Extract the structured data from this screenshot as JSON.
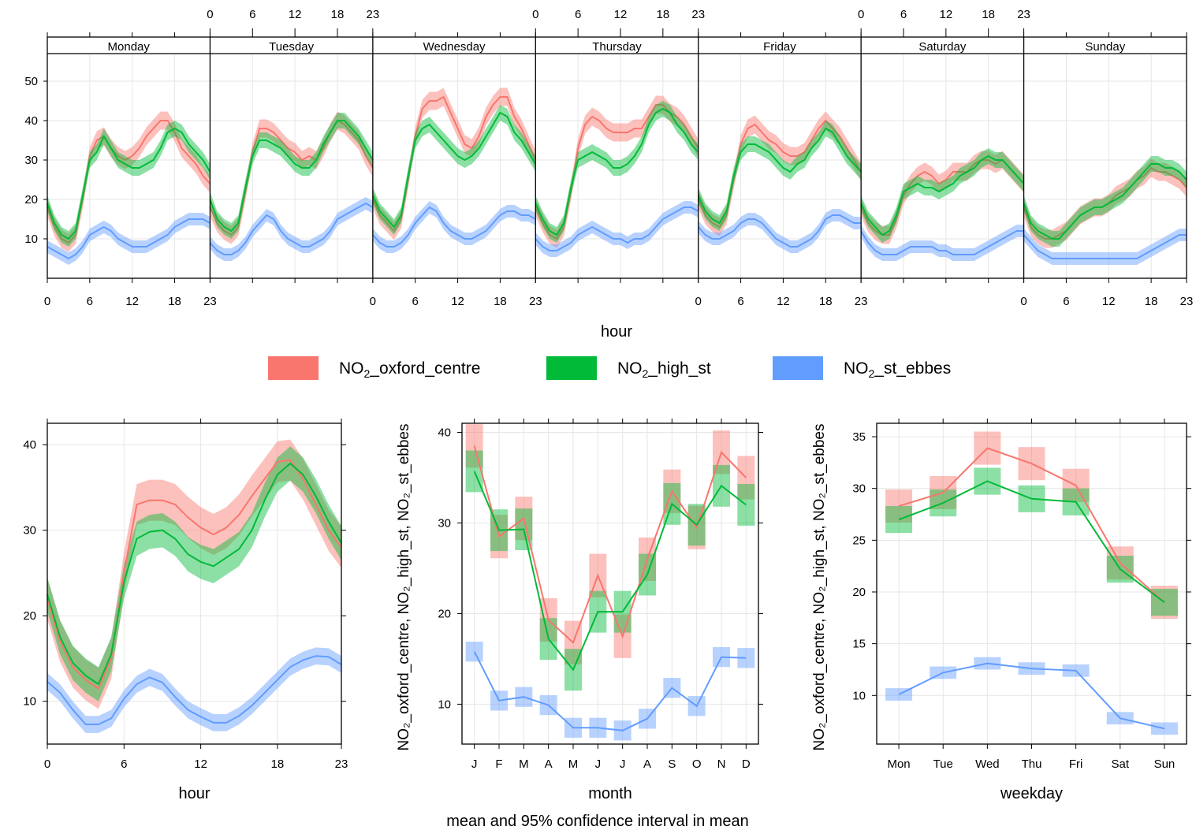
{
  "caption": "mean and 95% confidence interval in mean",
  "colors": {
    "NO2_oxford_centre": "#F8766D",
    "NO2_high_st": "#00BA38",
    "NO2_st_ebbes": "#619CFF"
  },
  "legend": {
    "placement": "middle",
    "items": [
      {
        "key": "NO2_oxford_centre",
        "prefix": "NO",
        "sub": "2",
        "suffix": "_oxford_centre"
      },
      {
        "key": "NO2_high_st",
        "prefix": "NO",
        "sub": "2",
        "suffix": "_high_st"
      },
      {
        "key": "NO2_st_ebbes",
        "prefix": "NO",
        "sub": "2",
        "suffix": "_st_ebbes"
      }
    ]
  },
  "shared_ylabel": "NO₂_oxford_centre, NO₂_high_st, NO₂_st_ebbes",
  "chart_data": [
    {
      "type": "line",
      "panel": "day_hour",
      "xlabel": "hour",
      "ylim": [
        0,
        57
      ],
      "yticks": [
        10,
        20,
        30,
        40,
        50
      ],
      "xticks": [
        0,
        6,
        12,
        18,
        23
      ],
      "grid": true,
      "days": [
        "Monday",
        "Tuesday",
        "Wednesday",
        "Thursday",
        "Friday",
        "Saturday",
        "Sunday"
      ],
      "series": [
        {
          "name": "NO2_oxford_centre",
          "values": [
            [
              18,
              13,
              10,
              9,
              11,
              20,
              31,
              35,
              36,
              33,
              31,
              30,
              31,
              33,
              36,
              38,
              40,
              40,
              37,
              33,
              31,
              29,
              26,
              24
            ],
            [
              18,
              14,
              12,
              11,
              13,
              22,
              32,
              38,
              38,
              37,
              35,
              33,
              32,
              30,
              31,
              30,
              33,
              37,
              40,
              39,
              37,
              35,
              31,
              28
            ],
            [
              20,
              16,
              14,
              12,
              15,
              25,
              36,
              43,
              45,
              45,
              46,
              42,
              38,
              34,
              33,
              36,
              41,
              44,
              46,
              46,
              41,
              38,
              34,
              30
            ],
            [
              18,
              14,
              11,
              10,
              13,
              22,
              33,
              39,
              41,
              40,
              38,
              37,
              37,
              37,
              38,
              38,
              41,
              44,
              44,
              42,
              41,
              39,
              36,
              33
            ],
            [
              20,
              16,
              14,
              13,
              16,
              25,
              34,
              38,
              39,
              37,
              35,
              34,
              32,
              31,
              31,
              32,
              35,
              38,
              40,
              38,
              36,
              33,
              30,
              27
            ],
            [
              18,
              14,
              12,
              11,
              11,
              15,
              21,
              24,
              26,
              27,
              26,
              24,
              25,
              27,
              27,
              27,
              29,
              30,
              30,
              29,
              30,
              28,
              26,
              24
            ],
            [
              18,
              13,
              11,
              10,
              10,
              11,
              12,
              14,
              16,
              17,
              18,
              18,
              19,
              21,
              22,
              23,
              25,
              26,
              28,
              27,
              27,
              26,
              25,
              23
            ]
          ]
        },
        {
          "name": "NO2_high_st",
          "values": [
            [
              19,
              14,
              11,
              10,
              12,
              21,
              30,
              32,
              36,
              33,
              30,
              29,
              28,
              28,
              29,
              30,
              33,
              37,
              38,
              37,
              34,
              32,
              30,
              27
            ],
            [
              20,
              15,
              13,
              12,
              14,
              23,
              31,
              35,
              35,
              34,
              33,
              31,
              29,
              28,
              28,
              30,
              34,
              37,
              40,
              40,
              38,
              36,
              33,
              30
            ],
            [
              21,
              17,
              15,
              13,
              16,
              26,
              35,
              38,
              39,
              37,
              35,
              33,
              31,
              30,
              31,
              33,
              36,
              39,
              42,
              41,
              37,
              35,
              32,
              29
            ],
            [
              19,
              15,
              12,
              11,
              14,
              23,
              30,
              31,
              32,
              31,
              30,
              28,
              28,
              29,
              31,
              34,
              39,
              42,
              43,
              42,
              39,
              37,
              34,
              32
            ],
            [
              21,
              17,
              15,
              14,
              17,
              26,
              32,
              34,
              34,
              33,
              32,
              30,
              28,
              27,
              29,
              30,
              33,
              35,
              38,
              37,
              34,
              31,
              29,
              27
            ],
            [
              19,
              15,
              13,
              11,
              12,
              16,
              22,
              23,
              24,
              23,
              23,
              22,
              23,
              24,
              26,
              27,
              28,
              30,
              31,
              30,
              30,
              28,
              26,
              24
            ],
            [
              19,
              14,
              12,
              11,
              10,
              10,
              12,
              14,
              16,
              17,
              18,
              18,
              19,
              20,
              21,
              23,
              25,
              27,
              29,
              29,
              28,
              28,
              27,
              25
            ]
          ]
        },
        {
          "name": "NO2_st_ebbes",
          "values": [
            [
              8,
              7,
              6,
              5,
              6,
              8,
              11,
              12,
              13,
              12,
              10,
              9,
              8,
              8,
              8,
              9,
              10,
              11,
              13,
              14,
              15,
              15,
              15,
              14
            ],
            [
              9,
              7,
              6,
              6,
              7,
              9,
              12,
              14,
              16,
              15,
              12,
              10,
              9,
              8,
              8,
              9,
              10,
              12,
              15,
              16,
              17,
              18,
              19,
              18
            ],
            [
              11,
              9,
              8,
              8,
              9,
              11,
              14,
              16,
              18,
              17,
              14,
              12,
              11,
              10,
              10,
              11,
              12,
              14,
              16,
              17,
              17,
              16,
              16,
              15
            ],
            [
              10,
              8,
              7,
              7,
              8,
              9,
              11,
              12,
              13,
              12,
              11,
              10,
              10,
              9,
              10,
              10,
              11,
              13,
              15,
              16,
              17,
              18,
              18,
              17
            ],
            [
              13,
              11,
              10,
              10,
              11,
              12,
              14,
              15,
              15,
              14,
              12,
              10,
              9,
              8,
              8,
              9,
              10,
              12,
              15,
              16,
              16,
              15,
              14,
              14
            ],
            [
              12,
              9,
              7,
              6,
              6,
              6,
              7,
              8,
              8,
              8,
              8,
              7,
              7,
              6,
              6,
              6,
              6,
              7,
              8,
              9,
              10,
              11,
              12,
              12
            ],
            [
              11,
              9,
              7,
              6,
              5,
              5,
              5,
              5,
              5,
              5,
              5,
              5,
              5,
              5,
              5,
              5,
              5,
              6,
              7,
              8,
              9,
              10,
              11,
              11
            ]
          ]
        }
      ]
    },
    {
      "type": "line",
      "panel": "hour",
      "xlabel": "hour",
      "xlim": [
        0,
        23
      ],
      "ylim": [
        5,
        42.5
      ],
      "xticks": [
        0,
        6,
        12,
        18,
        23
      ],
      "yticks": [
        10,
        20,
        30,
        40
      ],
      "grid": true,
      "series": [
        {
          "name": "NO2_oxford_centre",
          "values": [
            22,
            17,
            14,
            12.5,
            11.5,
            15,
            25,
            33,
            33.5,
            33.5,
            33,
            31.5,
            30.3,
            29.5,
            30.3,
            31.8,
            34,
            36,
            38,
            38.2,
            36,
            33,
            30,
            28
          ]
        },
        {
          "name": "NO2_high_st",
          "values": [
            22.5,
            17.5,
            14.5,
            13,
            12,
            15.5,
            24,
            29,
            29.8,
            30,
            29,
            27.2,
            26.3,
            25.8,
            26.8,
            27.8,
            30,
            33.5,
            36.5,
            37.8,
            36.5,
            34,
            31,
            28.5
          ]
        },
        {
          "name": "NO2_st_ebbes",
          "values": [
            12.3,
            11,
            9,
            7.3,
            7.3,
            8,
            10.3,
            12,
            12.8,
            12.2,
            10.5,
            9,
            8.2,
            7.5,
            7.5,
            8.3,
            9.5,
            11,
            12.5,
            14,
            14.8,
            15.3,
            15.2,
            14.3
          ]
        }
      ]
    },
    {
      "type": "line",
      "panel": "month",
      "xlabel": "month",
      "categories": [
        "J",
        "F",
        "M",
        "A",
        "M",
        "J",
        "J",
        "A",
        "S",
        "O",
        "N",
        "D"
      ],
      "ylim": [
        5.6,
        41
      ],
      "yticks": [
        10,
        20,
        30,
        40
      ],
      "grid": true,
      "series": [
        {
          "name": "NO2_oxford_centre",
          "values": [
            38.5,
            28.5,
            30.5,
            19.3,
            16.8,
            24.2,
            17.5,
            26,
            33.5,
            29.5,
            37.8,
            35
          ]
        },
        {
          "name": "NO2_high_st",
          "values": [
            35.7,
            29.2,
            29.3,
            17.2,
            13.8,
            20.2,
            20.2,
            24.3,
            32.1,
            29.8,
            34.1,
            32
          ]
        },
        {
          "name": "NO2_st_ebbes",
          "values": [
            15.8,
            10.4,
            10.8,
            9.9,
            7.4,
            7.4,
            7.1,
            8.4,
            11.8,
            9.8,
            15.2,
            15.1
          ]
        }
      ]
    },
    {
      "type": "line",
      "panel": "weekday",
      "xlabel": "weekday",
      "categories": [
        "Mon",
        "Tue",
        "Wed",
        "Thu",
        "Fri",
        "Sat",
        "Sun"
      ],
      "ylim": [
        5.3,
        36.3
      ],
      "yticks": [
        10,
        15,
        20,
        25,
        30,
        35
      ],
      "grid": true,
      "series": [
        {
          "name": "NO2_oxford_centre",
          "values": [
            28.3,
            29.6,
            33.9,
            32.4,
            30.3,
            22.8,
            19
          ]
        },
        {
          "name": "NO2_high_st",
          "values": [
            27,
            28.6,
            30.7,
            29,
            28.7,
            22.2,
            19
          ]
        },
        {
          "name": "NO2_st_ebbes",
          "values": [
            10.1,
            12.2,
            13.1,
            12.6,
            12.4,
            7.8,
            6.8
          ]
        }
      ]
    }
  ]
}
